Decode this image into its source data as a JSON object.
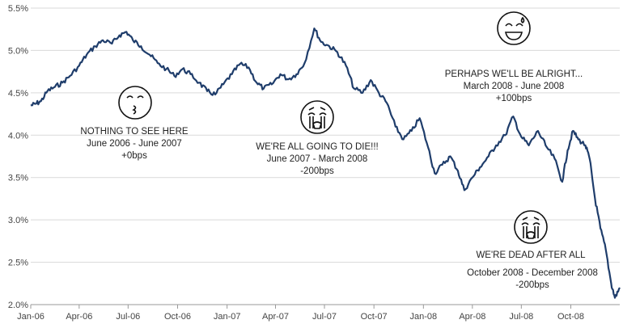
{
  "chart_data": {
    "type": "line",
    "title": "",
    "xlabel": "",
    "ylabel": "",
    "ylim": [
      2.0,
      5.5
    ],
    "y_ticks": [
      {
        "value": 2.0,
        "label": "2.0%"
      },
      {
        "value": 2.5,
        "label": "2.5%"
      },
      {
        "value": 3.0,
        "label": "3.0%"
      },
      {
        "value": 3.5,
        "label": "3.5%"
      },
      {
        "value": 4.0,
        "label": "4.0%"
      },
      {
        "value": 4.5,
        "label": "4.5%"
      },
      {
        "value": 5.0,
        "label": "5.0%"
      },
      {
        "value": 5.5,
        "label": "5.5%"
      }
    ],
    "x_ticks": [
      {
        "value": "2006-01-01",
        "label": "Jan-06"
      },
      {
        "value": "2006-04-01",
        "label": "Apr-06"
      },
      {
        "value": "2006-07-01",
        "label": "Jul-06"
      },
      {
        "value": "2006-10-01",
        "label": "Oct-06"
      },
      {
        "value": "2007-01-01",
        "label": "Jan-07"
      },
      {
        "value": "2007-04-01",
        "label": "Apr-07"
      },
      {
        "value": "2007-07-01",
        "label": "Jul-07"
      },
      {
        "value": "2007-10-01",
        "label": "Oct-07"
      },
      {
        "value": "2008-01-01",
        "label": "Jan-08"
      },
      {
        "value": "2008-04-01",
        "label": "Apr-08"
      },
      {
        "value": "2008-07-01",
        "label": "Jul-08"
      },
      {
        "value": "2008-10-01",
        "label": "Oct-08"
      }
    ],
    "xlim": [
      "2006-01-01",
      "2008-12-31"
    ],
    "grid": "horizontal",
    "legend": "none",
    "series": [
      {
        "color": "#1f3d6b",
        "points": [
          [
            "2006-01-01",
            4.35
          ],
          [
            "2006-01-10",
            4.37
          ],
          [
            "2006-01-20",
            4.4
          ],
          [
            "2006-02-01",
            4.52
          ],
          [
            "2006-02-15",
            4.57
          ],
          [
            "2006-03-01",
            4.62
          ],
          [
            "2006-03-15",
            4.7
          ],
          [
            "2006-04-01",
            4.82
          ],
          [
            "2006-04-15",
            4.95
          ],
          [
            "2006-05-01",
            5.05
          ],
          [
            "2006-05-15",
            5.12
          ],
          [
            "2006-06-01",
            5.08
          ],
          [
            "2006-06-15",
            5.18
          ],
          [
            "2006-06-28",
            5.22
          ],
          [
            "2006-07-10",
            5.12
          ],
          [
            "2006-07-25",
            5.05
          ],
          [
            "2006-08-10",
            4.95
          ],
          [
            "2006-08-25",
            4.85
          ],
          [
            "2006-09-10",
            4.78
          ],
          [
            "2006-09-25",
            4.7
          ],
          [
            "2006-10-10",
            4.78
          ],
          [
            "2006-10-25",
            4.72
          ],
          [
            "2006-11-10",
            4.62
          ],
          [
            "2006-11-25",
            4.52
          ],
          [
            "2006-12-10",
            4.48
          ],
          [
            "2006-12-25",
            4.6
          ],
          [
            "2007-01-10",
            4.72
          ],
          [
            "2007-01-25",
            4.84
          ],
          [
            "2007-02-10",
            4.8
          ],
          [
            "2007-02-25",
            4.62
          ],
          [
            "2007-03-10",
            4.55
          ],
          [
            "2007-03-25",
            4.6
          ],
          [
            "2007-04-10",
            4.72
          ],
          [
            "2007-04-25",
            4.66
          ],
          [
            "2007-05-10",
            4.72
          ],
          [
            "2007-05-25",
            4.85
          ],
          [
            "2007-06-12",
            5.26
          ],
          [
            "2007-06-25",
            5.1
          ],
          [
            "2007-07-10",
            5.05
          ],
          [
            "2007-07-25",
            4.98
          ],
          [
            "2007-08-10",
            4.82
          ],
          [
            "2007-08-25",
            4.55
          ],
          [
            "2007-09-10",
            4.5
          ],
          [
            "2007-09-25",
            4.65
          ],
          [
            "2007-10-10",
            4.5
          ],
          [
            "2007-10-25",
            4.38
          ],
          [
            "2007-11-10",
            4.1
          ],
          [
            "2007-11-25",
            3.95
          ],
          [
            "2007-12-10",
            4.05
          ],
          [
            "2007-12-25",
            4.2
          ],
          [
            "2008-01-10",
            3.85
          ],
          [
            "2008-01-22",
            3.55
          ],
          [
            "2008-02-05",
            3.65
          ],
          [
            "2008-02-20",
            3.75
          ],
          [
            "2008-03-05",
            3.58
          ],
          [
            "2008-03-17",
            3.35
          ],
          [
            "2008-04-01",
            3.5
          ],
          [
            "2008-04-15",
            3.62
          ],
          [
            "2008-05-01",
            3.75
          ],
          [
            "2008-05-15",
            3.88
          ],
          [
            "2008-06-01",
            4.0
          ],
          [
            "2008-06-16",
            4.22
          ],
          [
            "2008-07-01",
            3.98
          ],
          [
            "2008-07-15",
            3.88
          ],
          [
            "2008-08-01",
            4.05
          ],
          [
            "2008-08-15",
            3.88
          ],
          [
            "2008-09-01",
            3.72
          ],
          [
            "2008-09-15",
            3.45
          ],
          [
            "2008-09-25",
            3.82
          ],
          [
            "2008-10-05",
            4.05
          ],
          [
            "2008-10-15",
            3.95
          ],
          [
            "2008-10-28",
            3.88
          ],
          [
            "2008-11-05",
            3.72
          ],
          [
            "2008-11-15",
            3.25
          ],
          [
            "2008-11-25",
            2.9
          ],
          [
            "2008-12-05",
            2.65
          ],
          [
            "2008-12-15",
            2.25
          ],
          [
            "2008-12-22",
            2.08
          ],
          [
            "2008-12-31",
            2.2
          ]
        ]
      }
    ],
    "annotations": [
      {
        "icon": "kissing-face-icon",
        "lines": [
          "NOTHING TO SEE HERE",
          "June 2006 - June 2007",
          "+0bps"
        ]
      },
      {
        "icon": "crying-face-icon",
        "lines": [
          "WE'RE ALL GOING TO DIE!!!",
          "June 2007 - March 2008",
          "-200bps"
        ]
      },
      {
        "icon": "sweat-smile-face-icon",
        "lines": [
          "PERHAPS WE'LL BE ALRIGHT...",
          "March 2008 - June 2008",
          "+100bps"
        ]
      },
      {
        "icon": "crying-face-icon",
        "lines": [
          "WE'RE DEAD AFTER ALL",
          "October 2008 - December 2008",
          "-200bps"
        ]
      }
    ]
  }
}
